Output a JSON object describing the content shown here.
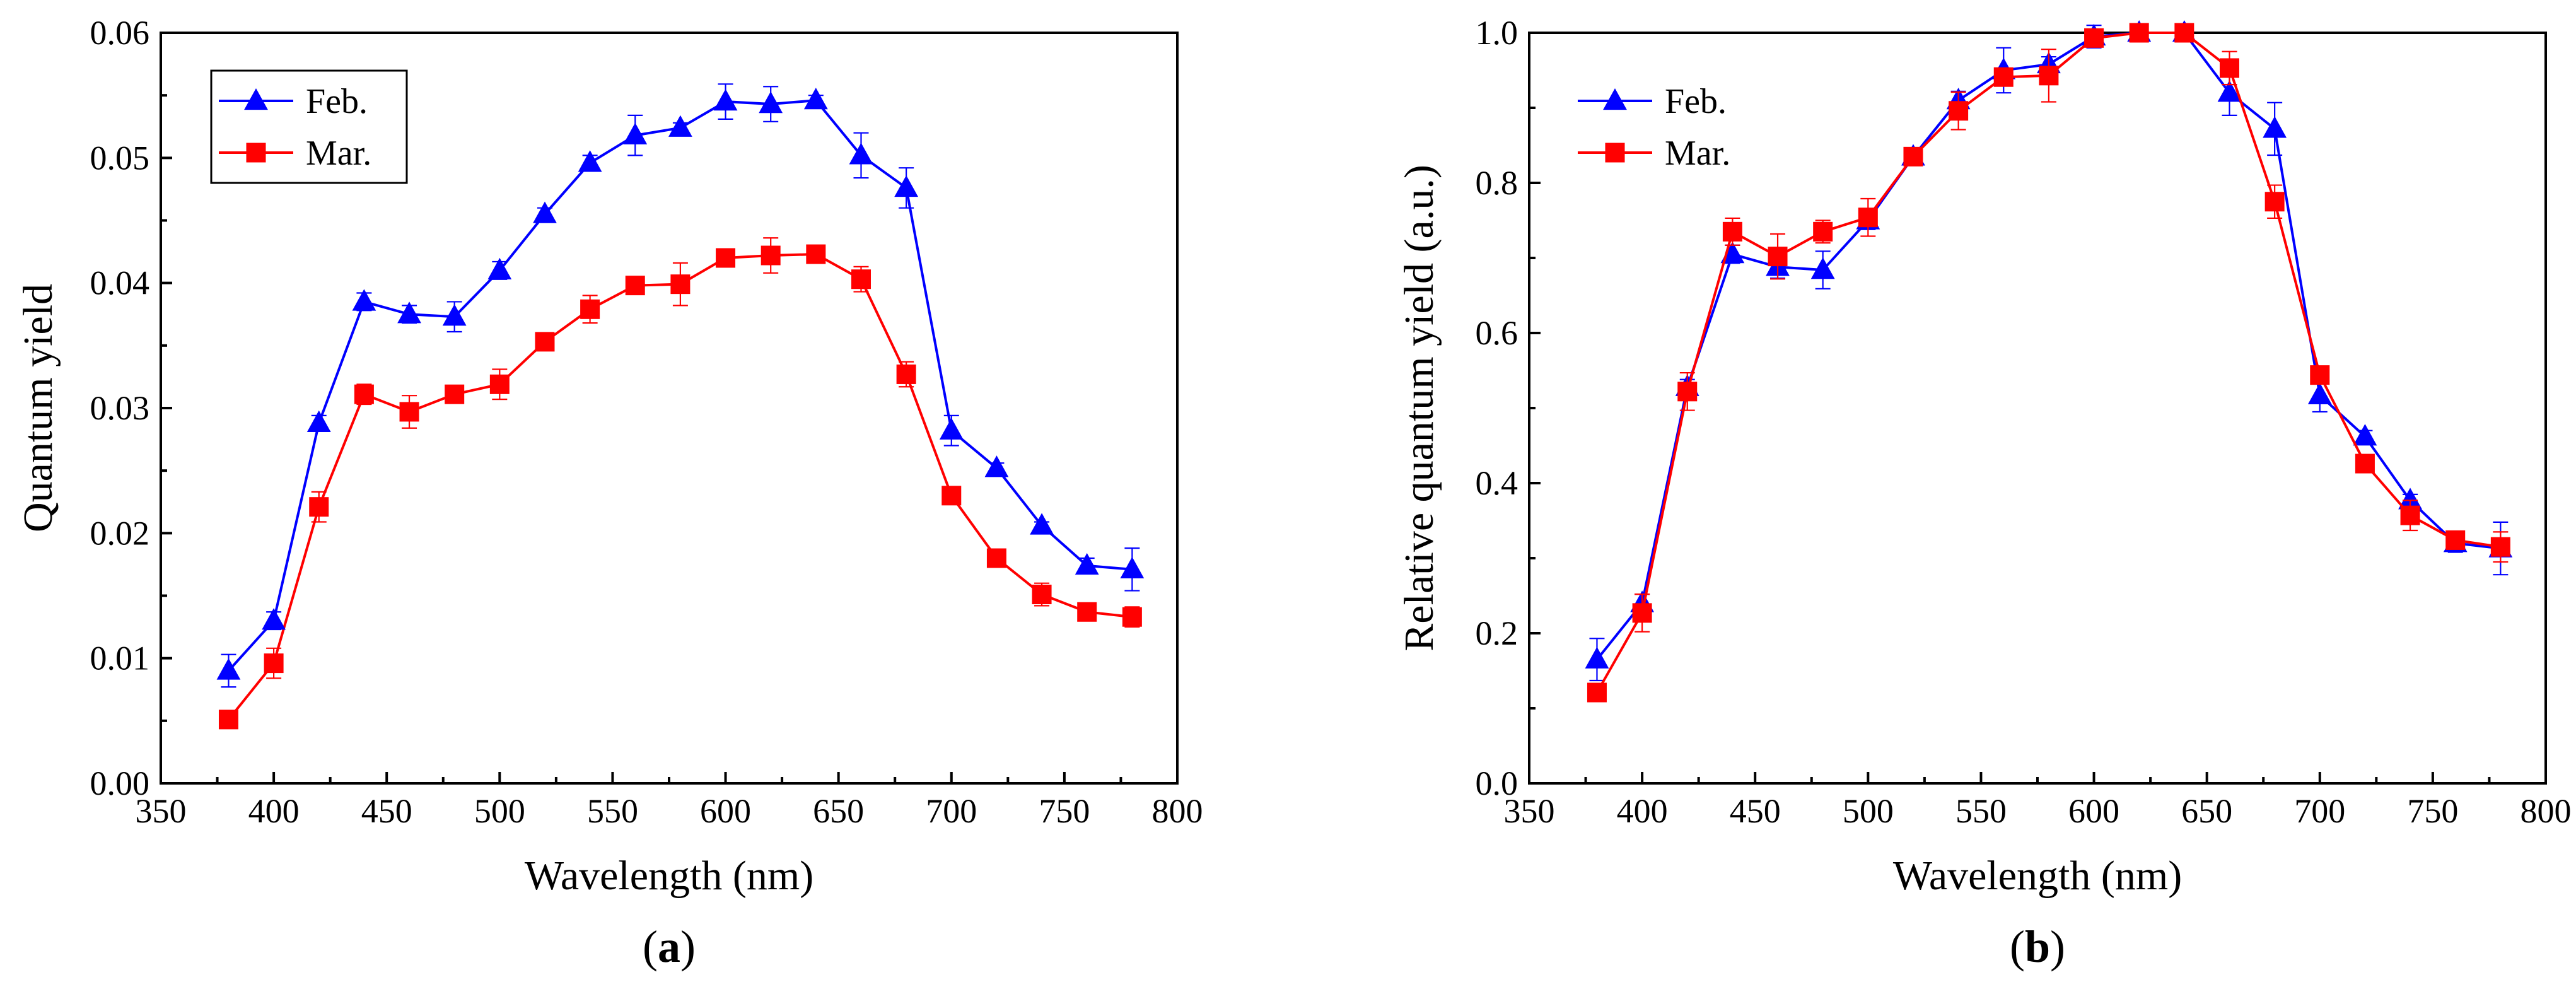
{
  "colors": {
    "feb": "#0000ff",
    "mar": "#ff0000",
    "axis": "#000000"
  },
  "chart_data": [
    {
      "type": "line",
      "panel": "a",
      "caption_open": "(",
      "caption_letter": "a",
      "caption_close": ")",
      "title": "",
      "xlabel": "Wavelength (nm)",
      "ylabel": "Quantum yield",
      "xlim": [
        350,
        800
      ],
      "ylim": [
        0.0,
        0.06
      ],
      "x_ticks": [
        350,
        400,
        450,
        500,
        550,
        600,
        650,
        700,
        750,
        800
      ],
      "x_tick_labels": [
        "350",
        "400",
        "450",
        "500",
        "550",
        "600",
        "650",
        "700",
        "750",
        "800"
      ],
      "y_ticks": [
        0.0,
        0.01,
        0.02,
        0.03,
        0.04,
        0.05,
        0.06
      ],
      "y_tick_labels": [
        "0.00",
        "0.01",
        "0.02",
        "0.03",
        "0.04",
        "0.05",
        "0.06"
      ],
      "legend_position": "top-left",
      "x": [
        380,
        400,
        420,
        440,
        460,
        480,
        500,
        520,
        540,
        560,
        580,
        600,
        620,
        640,
        660,
        680,
        700,
        720,
        740,
        760,
        780
      ],
      "series": [
        {
          "name": "Feb.",
          "color_key": "feb",
          "marker": "triangle",
          "values": [
            0.009,
            0.013,
            0.0288,
            0.0385,
            0.0375,
            0.0373,
            0.041,
            0.0455,
            0.0496,
            0.0518,
            0.0524,
            0.0545,
            0.0543,
            0.0546,
            0.0502,
            0.0476,
            0.0282,
            0.0252,
            0.0206,
            0.0174,
            0.0171
          ],
          "errors": [
            0.0013,
            0.0007,
            0.0006,
            0.0007,
            0.0007,
            0.0012,
            0.0007,
            0.0005,
            0.0006,
            0.0016,
            0.0004,
            0.0014,
            0.0014,
            0.0004,
            0.0018,
            0.0016,
            0.0012,
            0.0004,
            0.0003,
            0.0006,
            0.0017
          ]
        },
        {
          "name": "Mar.",
          "color_key": "mar",
          "marker": "square",
          "values": [
            0.0051,
            0.0096,
            0.0221,
            0.0311,
            0.0297,
            0.0311,
            0.0319,
            0.0353,
            0.0379,
            0.0398,
            0.0399,
            0.042,
            0.0422,
            0.0423,
            0.0403,
            0.0327,
            0.023,
            0.018,
            0.0151,
            0.0137,
            0.0133
          ],
          "errors": [
            0.0003,
            0.0012,
            0.0012,
            0.0008,
            0.0013,
            0.0006,
            0.0012,
            0.0003,
            0.0011,
            0.0002,
            0.0017,
            0.0003,
            0.0014,
            0.0002,
            0.001,
            0.001,
            0.0004,
            0.0002,
            0.0009,
            0.0003,
            0.0008
          ]
        }
      ]
    },
    {
      "type": "line",
      "panel": "b",
      "caption_open": "(",
      "caption_letter": "b",
      "caption_close": ")",
      "title": "",
      "xlabel": "Wavelength (nm)",
      "ylabel": "Relative quantum yield (a.u.)",
      "xlim": [
        350,
        800
      ],
      "ylim": [
        0.0,
        1.0
      ],
      "x_ticks": [
        350,
        400,
        450,
        500,
        550,
        600,
        650,
        700,
        750,
        800
      ],
      "x_tick_labels": [
        "350",
        "400",
        "450",
        "500",
        "550",
        "600",
        "650",
        "700",
        "750",
        "800"
      ],
      "y_ticks": [
        0.0,
        0.2,
        0.4,
        0.6,
        0.8,
        1.0
      ],
      "y_tick_labels": [
        "0.0",
        "0.2",
        "0.4",
        "0.6",
        "0.8",
        "1.0"
      ],
      "legend_position": "top-left",
      "x": [
        380,
        400,
        420,
        440,
        460,
        480,
        500,
        520,
        540,
        560,
        580,
        600,
        620,
        640,
        660,
        680,
        700,
        720,
        740,
        760,
        780
      ],
      "series": [
        {
          "name": "Feb.",
          "color_key": "feb",
          "marker": "triangle",
          "values": [
            0.165,
            0.24,
            0.528,
            0.705,
            0.688,
            0.684,
            0.75,
            0.835,
            0.91,
            0.95,
            0.958,
            0.995,
            1.0,
            1.0,
            0.92,
            0.872,
            0.517,
            0.462,
            0.377,
            0.32,
            0.313
          ],
          "errors": [
            0.028,
            0.012,
            0.01,
            0.012,
            0.015,
            0.025,
            0.012,
            0.008,
            0.012,
            0.03,
            0.01,
            0.015,
            0.01,
            0.008,
            0.03,
            0.035,
            0.022,
            0.008,
            0.008,
            0.012,
            0.035
          ]
        },
        {
          "name": "Mar.",
          "color_key": "mar",
          "marker": "square",
          "values": [
            0.121,
            0.227,
            0.522,
            0.735,
            0.702,
            0.735,
            0.754,
            0.835,
            0.896,
            0.941,
            0.943,
            0.993,
            1.0,
            1.0,
            0.953,
            0.775,
            0.544,
            0.426,
            0.357,
            0.324,
            0.315
          ],
          "errors": [
            0.008,
            0.025,
            0.025,
            0.018,
            0.03,
            0.015,
            0.025,
            0.006,
            0.025,
            0.01,
            0.035,
            0.008,
            0.008,
            0.006,
            0.022,
            0.022,
            0.008,
            0.006,
            0.02,
            0.008,
            0.02
          ]
        }
      ]
    }
  ]
}
